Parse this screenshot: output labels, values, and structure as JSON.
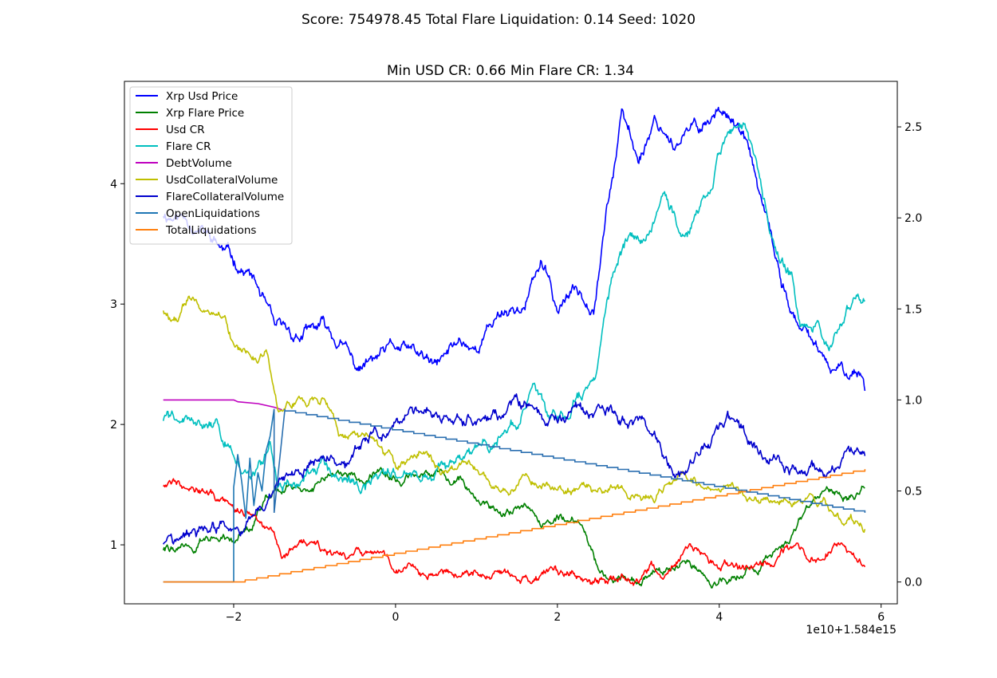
{
  "chart_data": {
    "type": "line",
    "suptitle": "Score: 754978.45 Total Flare Liquidation: 0.14 Seed: 1020",
    "title": "Min USD CR: 0.66 Min Flare CR: 1.34",
    "xlabel": "",
    "ylabel": "",
    "x_offset_label": "1e10+1.584e15",
    "x_range": [
      -2.87,
      5.8
    ],
    "xlim": [
      -3.35,
      6.2
    ],
    "ylim_left": [
      0.51,
      4.85
    ],
    "ylim_right": [
      -0.12,
      2.75
    ],
    "x_ticks": [
      -2,
      0,
      2,
      4,
      6
    ],
    "y_ticks_left": [
      1,
      2,
      3,
      4
    ],
    "y_ticks_right": [
      0.0,
      0.5,
      1.0,
      1.5,
      2.0,
      2.5
    ],
    "legend_position": "upper left",
    "grid": false,
    "series": [
      {
        "name": "Xrp Usd Price",
        "color": "#0000ff",
        "axis": "left",
        "points": [
          [
            -2.87,
            3.75
          ],
          [
            -2.55,
            3.72
          ],
          [
            -2.3,
            3.55
          ],
          [
            -2.0,
            3.35
          ],
          [
            -1.8,
            3.25
          ],
          [
            -1.65,
            3.05
          ],
          [
            -1.5,
            2.75
          ],
          [
            -1.2,
            2.72
          ],
          [
            -0.9,
            2.8
          ],
          [
            -0.6,
            2.6
          ],
          [
            -0.5,
            2.45
          ],
          [
            -0.2,
            2.55
          ],
          [
            0,
            2.62
          ],
          [
            0.3,
            2.55
          ],
          [
            0.5,
            2.45
          ],
          [
            0.8,
            2.7
          ],
          [
            1.0,
            2.65
          ],
          [
            1.3,
            2.95
          ],
          [
            1.6,
            3.0
          ],
          [
            1.8,
            3.35
          ],
          [
            2.0,
            2.95
          ],
          [
            2.2,
            3.1
          ],
          [
            2.45,
            3.05
          ],
          [
            2.6,
            3.8
          ],
          [
            2.8,
            4.55
          ],
          [
            3.0,
            4.2
          ],
          [
            3.2,
            4.55
          ],
          [
            3.5,
            4.35
          ],
          [
            3.8,
            4.5
          ],
          [
            4.1,
            4.65
          ],
          [
            4.35,
            4.3
          ],
          [
            4.55,
            3.75
          ],
          [
            4.75,
            3.2
          ],
          [
            5.0,
            2.75
          ],
          [
            5.2,
            2.65
          ],
          [
            5.35,
            2.4
          ],
          [
            5.6,
            2.45
          ],
          [
            5.75,
            2.45
          ],
          [
            5.8,
            2.33
          ]
        ],
        "noise": 0.045,
        "seed": 11
      },
      {
        "name": "Xrp Flare Price",
        "color": "#008000",
        "axis": "left",
        "points": [
          [
            -2.87,
            0.97
          ],
          [
            -2.5,
            1.0
          ],
          [
            -2.0,
            1.08
          ],
          [
            -1.8,
            1.2
          ],
          [
            -1.6,
            1.4
          ],
          [
            -1.2,
            1.5
          ],
          [
            -0.8,
            1.6
          ],
          [
            -0.5,
            1.55
          ],
          [
            0,
            1.55
          ],
          [
            0.3,
            1.5
          ],
          [
            0.5,
            1.6
          ],
          [
            0.8,
            1.55
          ],
          [
            1.0,
            1.45
          ],
          [
            1.3,
            1.25
          ],
          [
            1.6,
            1.3
          ],
          [
            1.8,
            1.15
          ],
          [
            2.0,
            1.25
          ],
          [
            2.3,
            1.15
          ],
          [
            2.5,
            0.85
          ],
          [
            2.7,
            0.72
          ],
          [
            3.0,
            0.72
          ],
          [
            3.3,
            0.8
          ],
          [
            3.6,
            0.78
          ],
          [
            3.9,
            0.72
          ],
          [
            4.2,
            0.75
          ],
          [
            4.5,
            0.85
          ],
          [
            4.8,
            1.0
          ],
          [
            5.0,
            1.2
          ],
          [
            5.3,
            1.45
          ],
          [
            5.6,
            1.45
          ],
          [
            5.8,
            1.5
          ]
        ],
        "noise": 0.03,
        "seed": 22
      },
      {
        "name": "Usd CR",
        "color": "#ff0000",
        "axis": "left",
        "points": [
          [
            -2.87,
            1.5
          ],
          [
            -2.5,
            1.55
          ],
          [
            -2.3,
            1.45
          ],
          [
            -2.0,
            1.3
          ],
          [
            -1.7,
            1.25
          ],
          [
            -1.5,
            1.2
          ],
          [
            -1.4,
            0.95
          ],
          [
            -1.0,
            1.0
          ],
          [
            -0.7,
            0.85
          ],
          [
            -0.3,
            0.9
          ],
          [
            0,
            0.8
          ],
          [
            0.5,
            0.75
          ],
          [
            1.0,
            0.78
          ],
          [
            1.5,
            0.72
          ],
          [
            2.0,
            0.75
          ],
          [
            2.5,
            0.75
          ],
          [
            3.0,
            0.73
          ],
          [
            3.3,
            0.8
          ],
          [
            3.6,
            1.0
          ],
          [
            4.0,
            0.82
          ],
          [
            4.3,
            0.8
          ],
          [
            4.6,
            0.85
          ],
          [
            4.9,
            1.0
          ],
          [
            5.2,
            0.9
          ],
          [
            5.5,
            1.0
          ],
          [
            5.7,
            0.85
          ],
          [
            5.8,
            0.85
          ]
        ],
        "noise": 0.03,
        "seed": 33
      },
      {
        "name": "Flare CR",
        "color": "#00bfbf",
        "axis": "left",
        "points": [
          [
            -2.87,
            2.05
          ],
          [
            -2.5,
            2.05
          ],
          [
            -2.3,
            1.95
          ],
          [
            -2.0,
            1.8
          ],
          [
            -1.8,
            1.55
          ],
          [
            -1.65,
            1.7
          ],
          [
            -1.55,
            1.9
          ],
          [
            -1.45,
            1.5
          ],
          [
            -1.2,
            1.5
          ],
          [
            -0.8,
            1.6
          ],
          [
            -0.5,
            1.45
          ],
          [
            -0.2,
            1.5
          ],
          [
            0,
            1.55
          ],
          [
            0.3,
            1.52
          ],
          [
            0.6,
            1.6
          ],
          [
            0.9,
            1.75
          ],
          [
            1.2,
            1.85
          ],
          [
            1.5,
            2.0
          ],
          [
            1.7,
            2.3
          ],
          [
            1.9,
            2.0
          ],
          [
            2.1,
            2.1
          ],
          [
            2.3,
            2.25
          ],
          [
            2.5,
            2.6
          ],
          [
            2.7,
            3.2
          ],
          [
            2.9,
            3.5
          ],
          [
            3.1,
            3.6
          ],
          [
            3.3,
            3.9
          ],
          [
            3.5,
            3.65
          ],
          [
            3.7,
            3.75
          ],
          [
            3.9,
            4.0
          ],
          [
            4.1,
            4.45
          ],
          [
            4.3,
            4.5
          ],
          [
            4.5,
            4.05
          ],
          [
            4.7,
            3.4
          ],
          [
            4.9,
            3.2
          ],
          [
            5.0,
            2.85
          ],
          [
            5.2,
            2.9
          ],
          [
            5.35,
            2.65
          ],
          [
            5.5,
            2.9
          ],
          [
            5.7,
            3.05
          ],
          [
            5.8,
            3.0
          ]
        ],
        "noise": 0.045,
        "seed": 44
      },
      {
        "name": "DebtVolume",
        "color": "#bf00bf",
        "axis": "right",
        "points": [
          [
            -2.87,
            1.0
          ],
          [
            -2.0,
            1.0
          ],
          [
            -1.95,
            0.99
          ],
          [
            -1.7,
            0.98
          ],
          [
            -1.5,
            0.96
          ],
          [
            -1.4,
            0.945
          ]
        ],
        "noise": 0.0,
        "seed": 55
      },
      {
        "name": "UsdCollateralVolume",
        "color": "#bfbf00",
        "axis": "right",
        "points": [
          [
            -2.87,
            1.5
          ],
          [
            -2.7,
            1.45
          ],
          [
            -2.55,
            1.58
          ],
          [
            -2.3,
            1.48
          ],
          [
            -2.1,
            1.45
          ],
          [
            -2.0,
            1.3
          ],
          [
            -1.7,
            1.22
          ],
          [
            -1.6,
            1.3
          ],
          [
            -1.45,
            1.0
          ],
          [
            -1.1,
            0.98
          ],
          [
            -0.9,
            1.0
          ],
          [
            -0.7,
            0.8
          ],
          [
            -0.5,
            0.82
          ],
          [
            -0.3,
            0.8
          ],
          [
            0,
            0.65
          ],
          [
            0.3,
            0.72
          ],
          [
            0.6,
            0.6
          ],
          [
            0.9,
            0.65
          ],
          [
            1.2,
            0.55
          ],
          [
            1.6,
            0.55
          ],
          [
            2.0,
            0.53
          ],
          [
            2.4,
            0.5
          ],
          [
            2.8,
            0.5
          ],
          [
            3.2,
            0.47
          ],
          [
            3.5,
            0.58
          ],
          [
            3.8,
            0.52
          ],
          [
            4.1,
            0.55
          ],
          [
            4.4,
            0.45
          ],
          [
            4.7,
            0.47
          ],
          [
            5.0,
            0.45
          ],
          [
            5.3,
            0.4
          ],
          [
            5.6,
            0.35
          ],
          [
            5.8,
            0.32
          ]
        ],
        "noise": 0.02,
        "seed": 66
      },
      {
        "name": "FlareCollateralVolume",
        "color": "#0000cd",
        "axis": "right",
        "points": [
          [
            -2.87,
            0.22
          ],
          [
            -2.5,
            0.25
          ],
          [
            -2.0,
            0.3
          ],
          [
            -1.8,
            0.32
          ],
          [
            -1.6,
            0.42
          ],
          [
            -1.4,
            0.55
          ],
          [
            -1.1,
            0.6
          ],
          [
            -0.8,
            0.7
          ],
          [
            -0.6,
            0.62
          ],
          [
            -0.4,
            0.75
          ],
          [
            -0.1,
            0.82
          ],
          [
            0.2,
            0.88
          ],
          [
            0.5,
            0.95
          ],
          [
            0.8,
            0.95
          ],
          [
            1.0,
            0.85
          ],
          [
            1.3,
            0.92
          ],
          [
            1.6,
            0.95
          ],
          [
            1.8,
            0.88
          ],
          [
            2.0,
            0.9
          ],
          [
            2.4,
            0.95
          ],
          [
            2.8,
            0.92
          ],
          [
            3.2,
            0.88
          ],
          [
            3.4,
            0.65
          ],
          [
            3.6,
            0.6
          ],
          [
            3.8,
            0.72
          ],
          [
            4.1,
            0.88
          ],
          [
            4.4,
            0.75
          ],
          [
            4.7,
            0.65
          ],
          [
            5.0,
            0.6
          ],
          [
            5.3,
            0.62
          ],
          [
            5.6,
            0.68
          ],
          [
            5.8,
            0.72
          ]
        ],
        "noise": 0.028,
        "seed": 77
      },
      {
        "name": "OpenLiquidations",
        "color": "#1f77b4",
        "axis": "right",
        "points": [
          [
            -2.87,
            0.0
          ],
          [
            -2.0,
            0.0
          ],
          [
            -2.0,
            0.52
          ],
          [
            -1.95,
            0.7
          ],
          [
            -1.9,
            0.55
          ],
          [
            -1.85,
            0.35
          ],
          [
            -1.8,
            0.68
          ],
          [
            -1.75,
            0.42
          ],
          [
            -1.7,
            0.6
          ],
          [
            -1.65,
            0.5
          ],
          [
            -1.6,
            0.72
          ],
          [
            -1.55,
            0.8
          ],
          [
            -1.5,
            0.95
          ]
        ],
        "noise": 0.0,
        "seed": 88
      },
      {
        "name": "TotalLiquidations",
        "color": "#ff7f0e",
        "axis": "right",
        "points": [
          [
            -2.87,
            0.0
          ],
          [
            -2.0,
            0.0
          ],
          [
            5.8,
            0.62
          ]
        ],
        "noise": 0.0,
        "seed": 99,
        "stepped": true
      }
    ],
    "derived_line": {
      "color": "#2a6fb0",
      "axis": "right",
      "points": [
        [
          -1.5,
          0.95
        ],
        [
          5.8,
          0.38
        ]
      ],
      "stepped": true
    }
  }
}
